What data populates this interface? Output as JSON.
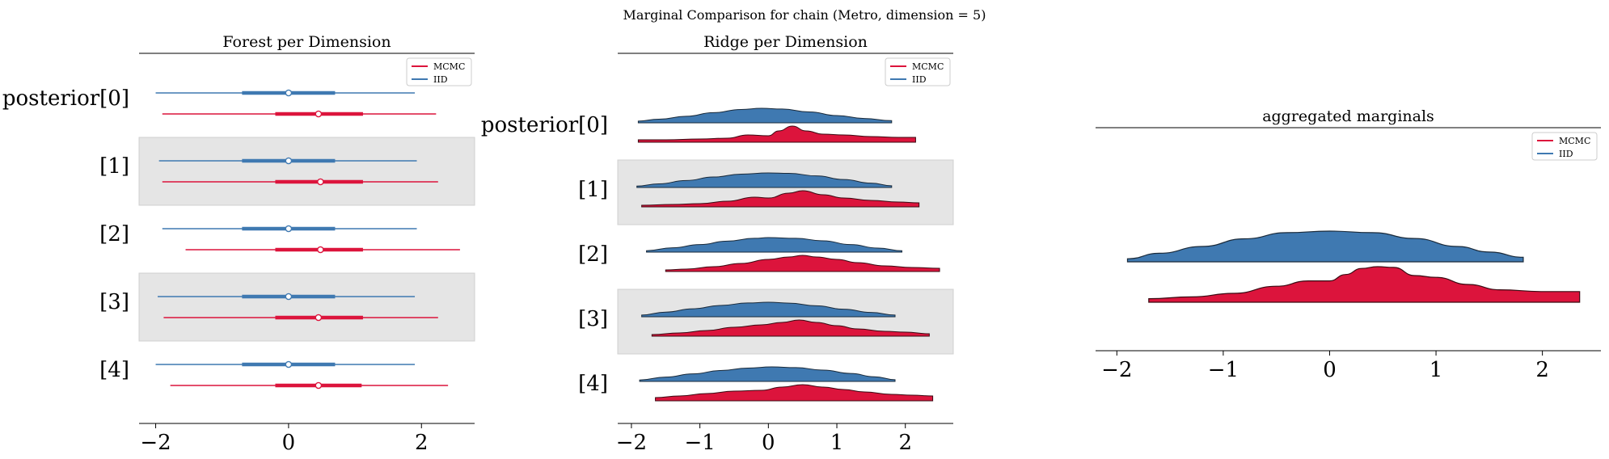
{
  "figure": {
    "title": "Marginal Comparison for chain (Metro, dimension = 5)"
  },
  "colors": {
    "mcmc": "#dc143c",
    "iid": "#3f79b1",
    "band": "#e5e5e5"
  },
  "chart_data": [
    {
      "type": "forest",
      "title": "Forest per Dimension",
      "xlim": [
        -2.25,
        2.8
      ],
      "xticks": [
        -2,
        0,
        2
      ],
      "xtick_labels": [
        "−2",
        "0",
        "2"
      ],
      "row_labels": [
        "posterior[0]",
        "[1]",
        "[2]",
        "[3]",
        "[4]"
      ],
      "shaded_rows": [
        1,
        3
      ],
      "legend": {
        "position": "top-right",
        "entries": [
          "MCMC",
          "IID"
        ]
      },
      "series": [
        {
          "name": "IID",
          "color_key": "iid",
          "rows": [
            {
              "lo": -2.0,
              "q1": -0.7,
              "median": 0.0,
              "q3": 0.7,
              "hi": 1.9
            },
            {
              "lo": -1.95,
              "q1": -0.7,
              "median": 0.0,
              "q3": 0.7,
              "hi": 1.93
            },
            {
              "lo": -1.9,
              "q1": -0.7,
              "median": 0.0,
              "q3": 0.7,
              "hi": 1.93
            },
            {
              "lo": -1.97,
              "q1": -0.7,
              "median": 0.0,
              "q3": 0.7,
              "hi": 1.9
            },
            {
              "lo": -2.0,
              "q1": -0.7,
              "median": 0.0,
              "q3": 0.7,
              "hi": 1.9
            }
          ]
        },
        {
          "name": "MCMC",
          "color_key": "mcmc",
          "rows": [
            {
              "lo": -1.9,
              "q1": -0.2,
              "median": 0.45,
              "q3": 1.12,
              "hi": 2.22
            },
            {
              "lo": -1.9,
              "q1": -0.2,
              "median": 0.48,
              "q3": 1.12,
              "hi": 2.25
            },
            {
              "lo": -1.55,
              "q1": -0.2,
              "median": 0.48,
              "q3": 1.12,
              "hi": 2.58
            },
            {
              "lo": -1.88,
              "q1": -0.2,
              "median": 0.45,
              "q3": 1.12,
              "hi": 2.25
            },
            {
              "lo": -1.78,
              "q1": -0.2,
              "median": 0.45,
              "q3": 1.1,
              "hi": 2.4
            }
          ]
        }
      ]
    },
    {
      "type": "ridge",
      "title": "Ridge per Dimension",
      "xlim": [
        -2.2,
        2.7
      ],
      "xticks": [
        -2,
        -1,
        0,
        1,
        2
      ],
      "xtick_labels": [
        "−2",
        "−1",
        "0",
        "1",
        "2"
      ],
      "row_labels": [
        "posterior[0]",
        "[1]",
        "[2]",
        "[3]",
        "[4]"
      ],
      "shaded_rows": [
        1,
        3
      ],
      "legend": {
        "position": "top-right",
        "entries": [
          "MCMC",
          "IID"
        ]
      },
      "series": [
        {
          "name": "IID",
          "color_key": "iid",
          "rows": [
            {
              "x": [
                -1.9,
                -1.6,
                -1.2,
                -0.8,
                -0.4,
                -0.1,
                0.2,
                0.6,
                1.0,
                1.4,
                1.8
              ],
              "y": [
                0.12,
                0.25,
                0.45,
                0.7,
                0.92,
                1.0,
                0.95,
                0.75,
                0.5,
                0.3,
                0.15
              ]
            },
            {
              "x": [
                -1.92,
                -1.6,
                -1.2,
                -0.8,
                -0.4,
                0.0,
                0.3,
                0.7,
                1.1,
                1.5,
                1.8
              ],
              "y": [
                0.1,
                0.25,
                0.48,
                0.72,
                0.92,
                1.0,
                0.97,
                0.8,
                0.55,
                0.3,
                0.12
              ]
            },
            {
              "x": [
                -1.78,
                -1.4,
                -1.0,
                -0.6,
                -0.2,
                0.0,
                0.4,
                0.8,
                1.2,
                1.6,
                1.95
              ],
              "y": [
                0.1,
                0.3,
                0.52,
                0.76,
                0.95,
                1.0,
                0.95,
                0.78,
                0.52,
                0.28,
                0.1
              ]
            },
            {
              "x": [
                -1.85,
                -1.5,
                -1.1,
                -0.7,
                -0.3,
                0.0,
                0.3,
                0.7,
                1.1,
                1.5,
                1.85
              ],
              "y": [
                0.12,
                0.32,
                0.55,
                0.78,
                0.95,
                1.0,
                0.94,
                0.76,
                0.52,
                0.3,
                0.12
              ]
            },
            {
              "x": [
                -1.88,
                -1.5,
                -1.1,
                -0.7,
                -0.3,
                0.05,
                0.4,
                0.8,
                1.2,
                1.55,
                1.85
              ],
              "y": [
                0.1,
                0.3,
                0.52,
                0.75,
                0.92,
                1.0,
                0.95,
                0.78,
                0.55,
                0.32,
                0.12
              ]
            }
          ]
        },
        {
          "name": "MCMC",
          "color_key": "mcmc",
          "rows": [
            {
              "x": [
                -1.9,
                -1.5,
                -1.0,
                -0.6,
                -0.3,
                0.0,
                0.15,
                0.35,
                0.55,
                0.8,
                1.1,
                1.5,
                1.9,
                2.15
              ],
              "y": [
                0.15,
                0.15,
                0.2,
                0.25,
                0.45,
                0.4,
                0.7,
                1.0,
                0.7,
                0.5,
                0.45,
                0.35,
                0.3,
                0.3
              ]
            },
            {
              "x": [
                -1.85,
                -1.4,
                -1.0,
                -0.6,
                -0.2,
                0.0,
                0.3,
                0.5,
                0.8,
                1.1,
                1.5,
                1.9,
                2.2
              ],
              "y": [
                0.1,
                0.15,
                0.2,
                0.35,
                0.6,
                0.55,
                0.85,
                1.0,
                0.75,
                0.55,
                0.4,
                0.3,
                0.25
              ]
            },
            {
              "x": [
                -1.5,
                -1.2,
                -0.8,
                -0.4,
                0.0,
                0.3,
                0.5,
                0.7,
                1.0,
                1.3,
                1.7,
                2.1,
                2.5
              ],
              "y": [
                0.1,
                0.15,
                0.3,
                0.5,
                0.75,
                0.9,
                1.0,
                0.9,
                0.75,
                0.55,
                0.35,
                0.25,
                0.2
              ]
            },
            {
              "x": [
                -1.7,
                -1.3,
                -0.9,
                -0.5,
                -0.1,
                0.2,
                0.45,
                0.7,
                1.0,
                1.3,
                1.7,
                2.0,
                2.35
              ],
              "y": [
                0.1,
                0.2,
                0.35,
                0.55,
                0.7,
                0.85,
                1.0,
                0.85,
                0.65,
                0.45,
                0.3,
                0.25,
                0.15
              ]
            },
            {
              "x": [
                -1.65,
                -1.3,
                -0.9,
                -0.5,
                -0.1,
                0.2,
                0.5,
                0.8,
                1.1,
                1.4,
                1.8,
                2.1,
                2.4
              ],
              "y": [
                0.2,
                0.3,
                0.45,
                0.6,
                0.65,
                0.85,
                1.0,
                0.85,
                0.7,
                0.55,
                0.4,
                0.35,
                0.3
              ]
            }
          ]
        }
      ]
    },
    {
      "type": "ridge",
      "title": "aggregated marginals",
      "xlim": [
        -2.2,
        2.55
      ],
      "xticks": [
        -2,
        -1,
        0,
        1,
        2
      ],
      "xtick_labels": [
        "−2",
        "−1",
        "0",
        "1",
        "2"
      ],
      "legend": {
        "position": "top-right",
        "entries": [
          "MCMC",
          "IID"
        ]
      },
      "series": [
        {
          "name": "IID",
          "color_key": "iid",
          "x": [
            -1.9,
            -1.6,
            -1.2,
            -0.8,
            -0.4,
            0.0,
            0.4,
            0.8,
            1.2,
            1.5,
            1.82
          ],
          "y": [
            0.1,
            0.28,
            0.5,
            0.75,
            0.95,
            1.0,
            0.95,
            0.76,
            0.5,
            0.32,
            0.15
          ]
        },
        {
          "name": "MCMC",
          "color_key": "mcmc",
          "x": [
            -1.7,
            -1.3,
            -0.9,
            -0.5,
            -0.2,
            0.0,
            0.15,
            0.3,
            0.45,
            0.6,
            0.8,
            1.0,
            1.3,
            1.6,
            2.0,
            2.35
          ],
          "y": [
            0.1,
            0.15,
            0.25,
            0.45,
            0.6,
            0.6,
            0.78,
            0.95,
            1.0,
            0.98,
            0.75,
            0.7,
            0.5,
            0.35,
            0.3,
            0.3
          ]
        }
      ]
    }
  ]
}
